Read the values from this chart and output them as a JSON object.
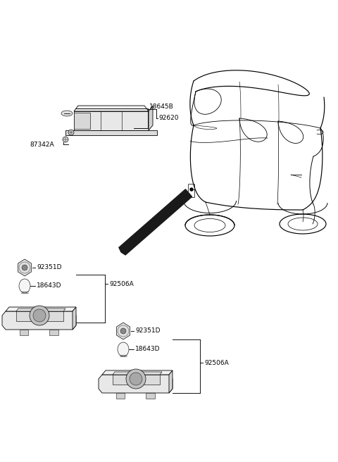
{
  "bg_color": "#ffffff",
  "lc": "#000000",
  "gray1": "#f0f0f0",
  "gray2": "#e0e0e0",
  "gray3": "#c8c8c8",
  "gray4": "#a0a0a0",
  "arrow_color": "#1a1a1a",
  "parts": {
    "label_18645B": "18645B",
    "label_92620": "92620",
    "label_87342A": "87342A",
    "label_92351D": "92351D",
    "label_18643D": "18643D",
    "label_92506A": "92506A"
  },
  "fontsize_label": 6.5,
  "lw_main": 0.9,
  "lw_thin": 0.6,
  "lw_leader": 0.65
}
